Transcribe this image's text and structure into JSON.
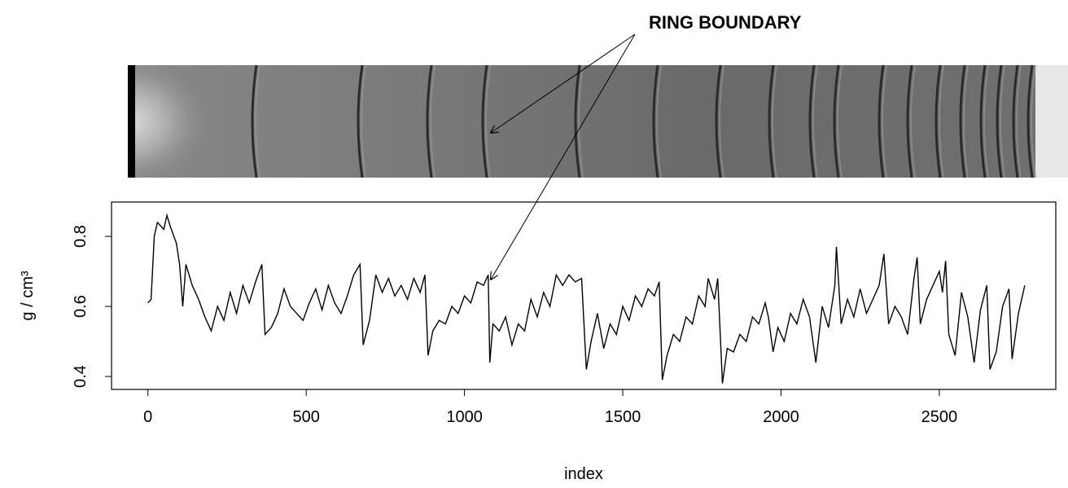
{
  "chart_data": {
    "type": "line",
    "annotation": "RING BOUNDARY",
    "xlabel": "index",
    "ylabel": "g / cm³",
    "color": "#000000",
    "xlim": [
      -115,
      2868
    ],
    "ylim": [
      0.363,
      0.898
    ],
    "xticks": [
      0,
      500,
      1000,
      1500,
      2000,
      2500
    ],
    "yticks": [
      0.4,
      0.6,
      0.8
    ],
    "x": [
      0,
      10,
      20,
      30,
      50,
      60,
      70,
      90,
      100,
      110,
      120,
      140,
      160,
      180,
      200,
      220,
      240,
      260,
      280,
      300,
      320,
      340,
      360,
      370,
      390,
      410,
      430,
      450,
      470,
      490,
      510,
      530,
      550,
      570,
      590,
      610,
      630,
      650,
      670,
      680,
      700,
      720,
      740,
      760,
      780,
      800,
      820,
      840,
      860,
      875,
      885,
      900,
      920,
      940,
      960,
      980,
      1000,
      1020,
      1040,
      1060,
      1075,
      1080,
      1090,
      1110,
      1130,
      1150,
      1170,
      1190,
      1210,
      1230,
      1250,
      1270,
      1290,
      1310,
      1330,
      1350,
      1370,
      1385,
      1400,
      1420,
      1440,
      1460,
      1480,
      1500,
      1520,
      1540,
      1560,
      1580,
      1600,
      1615,
      1625,
      1640,
      1660,
      1680,
      1700,
      1720,
      1740,
      1760,
      1770,
      1790,
      1800,
      1815,
      1830,
      1850,
      1870,
      1890,
      1910,
      1930,
      1950,
      1960,
      1975,
      1990,
      2010,
      2030,
      2050,
      2070,
      2090,
      2110,
      2130,
      2150,
      2170,
      2175,
      2190,
      2210,
      2230,
      2250,
      2270,
      2290,
      2310,
      2325,
      2340,
      2360,
      2380,
      2400,
      2420,
      2430,
      2440,
      2460,
      2480,
      2500,
      2510,
      2520,
      2530,
      2550,
      2570,
      2590,
      2610,
      2630,
      2650,
      2660,
      2680,
      2700,
      2720,
      2730,
      2750,
      2770
    ],
    "values": [
      0.61,
      0.62,
      0.8,
      0.84,
      0.82,
      0.86,
      0.83,
      0.78,
      0.72,
      0.6,
      0.72,
      0.66,
      0.62,
      0.57,
      0.53,
      0.6,
      0.56,
      0.64,
      0.58,
      0.66,
      0.61,
      0.67,
      0.72,
      0.52,
      0.54,
      0.58,
      0.65,
      0.6,
      0.58,
      0.56,
      0.61,
      0.65,
      0.59,
      0.66,
      0.61,
      0.58,
      0.63,
      0.69,
      0.72,
      0.49,
      0.56,
      0.69,
      0.64,
      0.68,
      0.63,
      0.66,
      0.62,
      0.68,
      0.64,
      0.69,
      0.46,
      0.53,
      0.56,
      0.55,
      0.6,
      0.58,
      0.63,
      0.61,
      0.67,
      0.66,
      0.69,
      0.44,
      0.55,
      0.53,
      0.57,
      0.49,
      0.55,
      0.53,
      0.62,
      0.57,
      0.64,
      0.6,
      0.69,
      0.66,
      0.69,
      0.67,
      0.68,
      0.42,
      0.5,
      0.58,
      0.48,
      0.55,
      0.52,
      0.6,
      0.56,
      0.63,
      0.6,
      0.65,
      0.63,
      0.67,
      0.39,
      0.46,
      0.52,
      0.5,
      0.57,
      0.55,
      0.63,
      0.6,
      0.68,
      0.62,
      0.68,
      0.38,
      0.48,
      0.47,
      0.52,
      0.5,
      0.57,
      0.55,
      0.61,
      0.57,
      0.47,
      0.54,
      0.5,
      0.58,
      0.55,
      0.62,
      0.57,
      0.44,
      0.6,
      0.54,
      0.66,
      0.77,
      0.55,
      0.62,
      0.57,
      0.65,
      0.58,
      0.62,
      0.66,
      0.75,
      0.55,
      0.6,
      0.57,
      0.52,
      0.68,
      0.74,
      0.55,
      0.62,
      0.66,
      0.7,
      0.64,
      0.73,
      0.52,
      0.46,
      0.64,
      0.57,
      0.44,
      0.59,
      0.66,
      0.42,
      0.47,
      0.6,
      0.65,
      0.45,
      0.58,
      0.66
    ]
  }
}
